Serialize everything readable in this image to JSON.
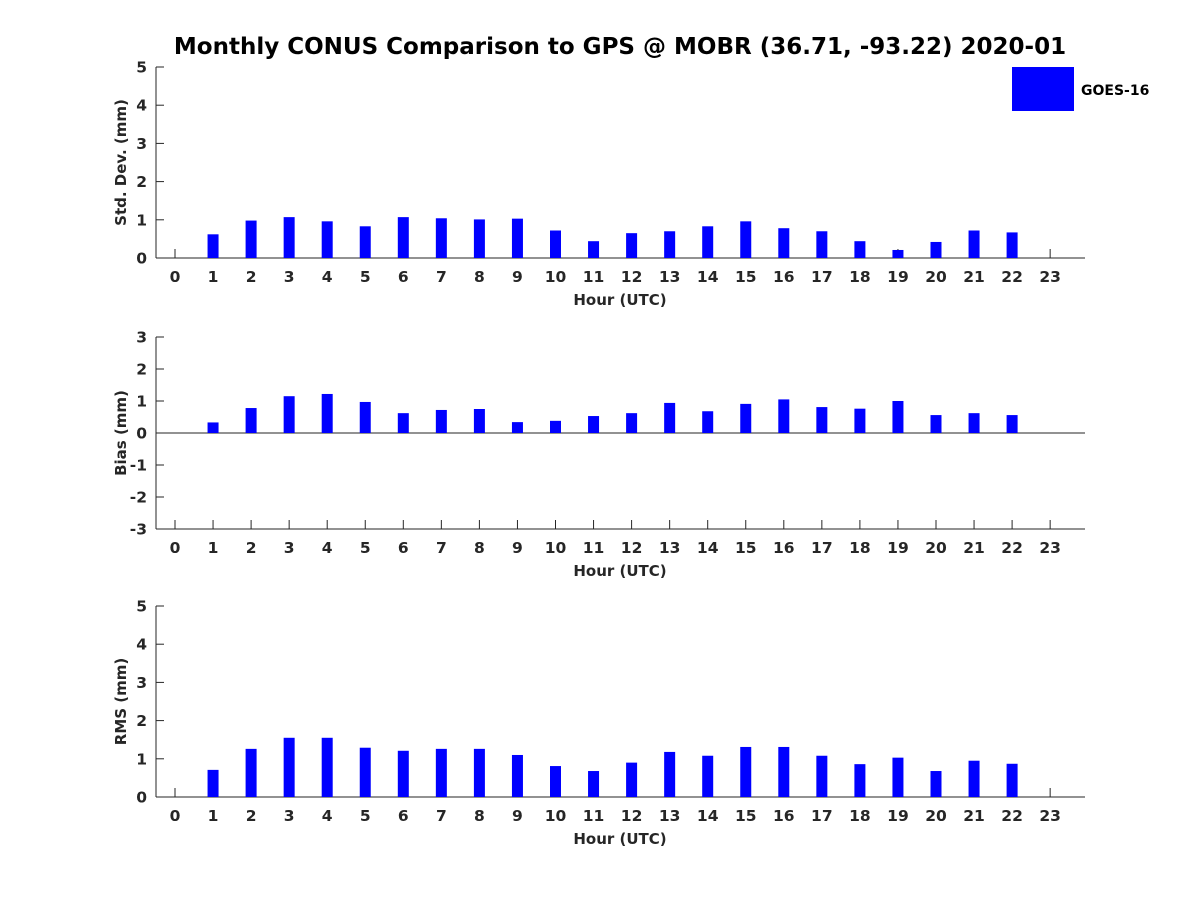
{
  "figure": {
    "title": "Monthly CONUS Comparison to GPS @ MOBR (36.71, -93.22) 2020-01"
  },
  "legend": {
    "label": "GOES-16",
    "color": "#0000ff",
    "placement": "top-right"
  },
  "chart_data": [
    {
      "type": "bar",
      "name": "std-dev",
      "title": "",
      "xlabel": "Hour (UTC)",
      "ylabel": "Std. Dev. (mm)",
      "ylim": [
        0,
        5
      ],
      "yticks": [
        "0",
        "1",
        "2",
        "3",
        "4",
        "5"
      ],
      "categories": [
        "0",
        "1",
        "2",
        "3",
        "4",
        "5",
        "6",
        "7",
        "8",
        "9",
        "10",
        "11",
        "12",
        "13",
        "14",
        "15",
        "16",
        "17",
        "18",
        "19",
        "20",
        "21",
        "22",
        "23"
      ],
      "series": [
        {
          "name": "GOES-16",
          "values": [
            null,
            0.62,
            0.98,
            1.07,
            0.96,
            0.83,
            1.07,
            1.04,
            1.01,
            1.03,
            0.72,
            0.44,
            0.65,
            0.7,
            0.83,
            0.96,
            0.78,
            0.7,
            0.44,
            0.21,
            0.42,
            0.72,
            0.67,
            null
          ]
        }
      ],
      "grid": false
    },
    {
      "type": "bar",
      "name": "bias",
      "title": "",
      "xlabel": "Hour (UTC)",
      "ylabel": "Bias (mm)",
      "ylim": [
        -3,
        3
      ],
      "yticks": [
        "-3",
        "-2",
        "-1",
        "0",
        "1",
        "2",
        "3"
      ],
      "categories": [
        "0",
        "1",
        "2",
        "3",
        "4",
        "5",
        "6",
        "7",
        "8",
        "9",
        "10",
        "11",
        "12",
        "13",
        "14",
        "15",
        "16",
        "17",
        "18",
        "19",
        "20",
        "21",
        "22",
        "23"
      ],
      "series": [
        {
          "name": "GOES-16",
          "values": [
            null,
            0.33,
            0.78,
            1.15,
            1.22,
            0.97,
            0.62,
            0.72,
            0.75,
            0.34,
            0.38,
            0.53,
            0.62,
            0.94,
            0.68,
            0.91,
            1.05,
            0.81,
            0.76,
            1.0,
            0.56,
            0.62,
            0.56,
            null
          ]
        }
      ],
      "grid": false
    },
    {
      "type": "bar",
      "name": "rms",
      "title": "",
      "xlabel": "Hour (UTC)",
      "ylabel": "RMS (mm)",
      "ylim": [
        0,
        5
      ],
      "yticks": [
        "0",
        "1",
        "2",
        "3",
        "4",
        "5"
      ],
      "categories": [
        "0",
        "1",
        "2",
        "3",
        "4",
        "5",
        "6",
        "7",
        "8",
        "9",
        "10",
        "11",
        "12",
        "13",
        "14",
        "15",
        "16",
        "17",
        "18",
        "19",
        "20",
        "21",
        "22",
        "23"
      ],
      "series": [
        {
          "name": "GOES-16",
          "values": [
            null,
            0.71,
            1.26,
            1.55,
            1.55,
            1.29,
            1.21,
            1.26,
            1.26,
            1.1,
            0.81,
            0.68,
            0.9,
            1.18,
            1.08,
            1.31,
            1.31,
            1.08,
            0.86,
            1.03,
            0.68,
            0.95,
            0.87,
            null
          ]
        }
      ],
      "grid": false
    }
  ]
}
